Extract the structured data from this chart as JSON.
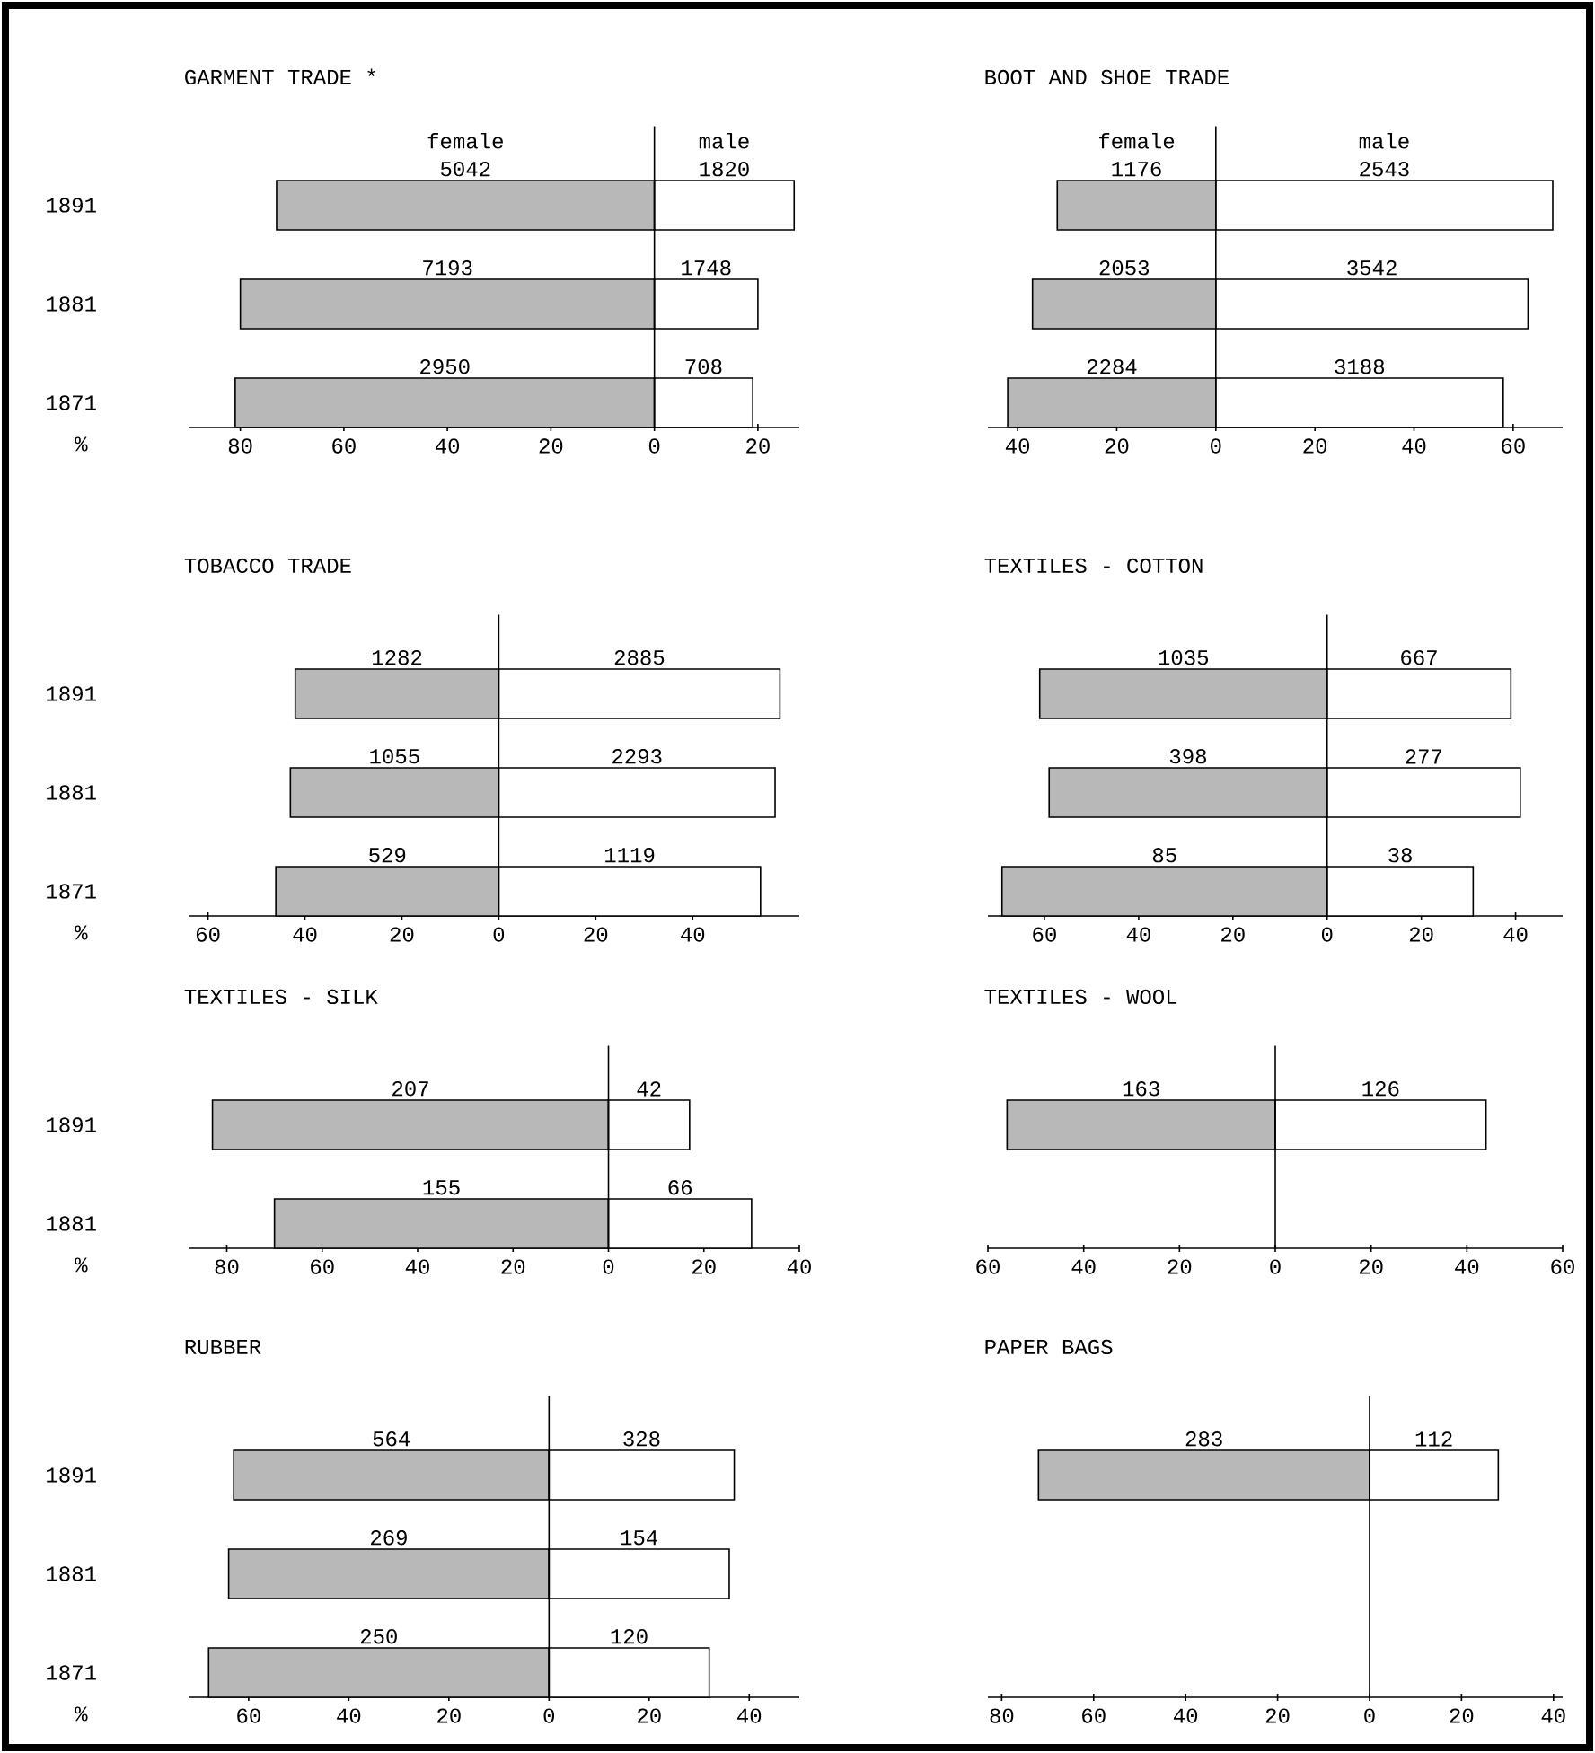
{
  "chart_data": [
    {
      "type": "bar",
      "orientation": "horizontal",
      "stacked": true,
      "title": "GARMENT TRADE *",
      "xlabel": "%",
      "categories": [
        "1891",
        "1881",
        "1871"
      ],
      "series": [
        {
          "name": "female",
          "color": "#b8b8b8",
          "values": [
            -73,
            -80,
            -81
          ]
        },
        {
          "name": "male",
          "color": "#ffffff",
          "values": [
            27,
            20,
            19
          ]
        }
      ],
      "annotations": [
        "5042",
        "7193",
        "2950",
        "1820",
        "1748",
        "708"
      ],
      "xlim": [
        -90,
        28
      ],
      "xticks": [
        {
          "value": -80,
          "label": "80"
        },
        {
          "value": -60,
          "label": "60"
        },
        {
          "value": -40,
          "label": "40"
        },
        {
          "value": -20,
          "label": "20"
        },
        0,
        20
      ]
    },
    {
      "type": "bar",
      "orientation": "horizontal",
      "stacked": true,
      "title": "BOOT AND SHOE TRADE",
      "categories": [
        "1891",
        "1881",
        "1871"
      ],
      "tick_labels": "x",
      "series": [
        {
          "name": "female",
          "color": "#b8b8b8",
          "values": [
            -32,
            -37,
            -42
          ]
        },
        {
          "name": "male",
          "color": "#ffffff",
          "values": [
            68,
            63,
            58
          ]
        }
      ],
      "annotations": [
        "1176",
        "2053",
        "2284",
        "2543",
        "3542",
        "3188"
      ],
      "xlim": [
        -46,
        70
      ],
      "xticks": [
        {
          "value": -40,
          "label": "40"
        },
        {
          "value": -20,
          "label": "20"
        },
        0,
        20,
        40,
        60
      ]
    },
    {
      "type": "bar",
      "orientation": "horizontal",
      "stacked": true,
      "title": "TOBACCO TRADE",
      "xlabel": "%",
      "categories": [
        "1891",
        "1881",
        "1871"
      ],
      "series": [
        {
          "color": "#b8b8b8",
          "values": [
            -42,
            -43,
            -46
          ]
        },
        {
          "color": "#ffffff",
          "values": [
            58,
            57,
            54
          ]
        }
      ],
      "annotations": [
        "1282",
        "1055",
        "529",
        "2885",
        "2293",
        "1119"
      ],
      "xlim": [
        -64,
        62
      ],
      "xticks": [
        {
          "value": -60,
          "label": "60"
        },
        {
          "value": -40,
          "label": "40"
        },
        {
          "value": -20,
          "label": "20"
        },
        0,
        20,
        40
      ]
    },
    {
      "type": "bar",
      "orientation": "horizontal",
      "stacked": true,
      "title": "TEXTILES - COTTON",
      "categories": [
        "1891",
        "1881",
        "1871"
      ],
      "tick_labels": "x",
      "series": [
        {
          "color": "#b8b8b8",
          "values": [
            -61,
            -59,
            -69
          ]
        },
        {
          "color": "#ffffff",
          "values": [
            39,
            41,
            31
          ]
        }
      ],
      "annotations": [
        "1035",
        "398",
        "85",
        "667",
        "277",
        "38"
      ],
      "xlim": [
        -72,
        50
      ],
      "xticks": [
        {
          "value": -60,
          "label": "60"
        },
        {
          "value": -40,
          "label": "40"
        },
        {
          "value": -20,
          "label": "20"
        },
        0,
        20,
        40
      ]
    },
    {
      "type": "bar",
      "orientation": "horizontal",
      "stacked": true,
      "title": "TEXTILES - SILK",
      "xlabel": "%",
      "categories": [
        "1891",
        "1881"
      ],
      "series": [
        {
          "color": "#b8b8b8",
          "values": [
            -83,
            -70
          ]
        },
        {
          "color": "#ffffff",
          "values": [
            17,
            30
          ]
        }
      ],
      "annotations": [
        "207",
        "155",
        "42",
        "66"
      ],
      "xlim": [
        -88,
        40
      ],
      "xticks": [
        {
          "value": -80,
          "label": "80"
        },
        {
          "value": -60,
          "label": "60"
        },
        {
          "value": -40,
          "label": "40"
        },
        {
          "value": -20,
          "label": "20"
        },
        0,
        20,
        40
      ]
    },
    {
      "type": "bar",
      "orientation": "horizontal",
      "stacked": true,
      "title": "TEXTILES - WOOL",
      "categories": [
        "1891",
        "1881"
      ],
      "tick_labels": "x",
      "series": [
        {
          "color": "#b8b8b8",
          "values": [
            -56,
            null
          ]
        },
        {
          "color": "#ffffff",
          "values": [
            44,
            null
          ]
        }
      ],
      "annotations": [
        "163",
        "126"
      ],
      "xlim": [
        -60,
        60
      ],
      "xticks": [
        {
          "value": -60,
          "label": "60"
        },
        {
          "value": -40,
          "label": "40"
        },
        {
          "value": -20,
          "label": "20"
        },
        0,
        20,
        40,
        60
      ]
    },
    {
      "type": "bar",
      "orientation": "horizontal",
      "stacked": true,
      "title": "RUBBER",
      "xlabel": "%",
      "categories": [
        "1891",
        "1881",
        "1871"
      ],
      "series": [
        {
          "color": "#b8b8b8",
          "values": [
            -63,
            -64,
            -68
          ]
        },
        {
          "color": "#ffffff",
          "values": [
            37,
            36,
            32
          ]
        }
      ],
      "annotations": [
        "564",
        "269",
        "250",
        "328",
        "154",
        "120"
      ],
      "xlim": [
        -72,
        50
      ],
      "xticks": [
        {
          "value": -60,
          "label": "60"
        },
        {
          "value": -40,
          "label": "40"
        },
        {
          "value": -20,
          "label": "20"
        },
        0,
        20,
        40
      ]
    },
    {
      "type": "bar",
      "orientation": "horizontal",
      "stacked": true,
      "title": "PAPER BAGS",
      "categories": [
        "1891",
        "1881",
        "1871"
      ],
      "tick_labels": "x",
      "series": [
        {
          "color": "#b8b8b8",
          "values": [
            -72,
            null,
            null
          ]
        },
        {
          "color": "#ffffff",
          "values": [
            28,
            null,
            null
          ]
        }
      ],
      "annotations": [
        "283",
        "112"
      ],
      "xlim": [
        -83,
        42
      ],
      "xticks": [
        {
          "value": -80,
          "label": "80"
        },
        {
          "value": -60,
          "label": "60"
        },
        {
          "value": -40,
          "label": "40"
        },
        {
          "value": -20,
          "label": "20"
        },
        0,
        20,
        40
      ]
    }
  ]
}
